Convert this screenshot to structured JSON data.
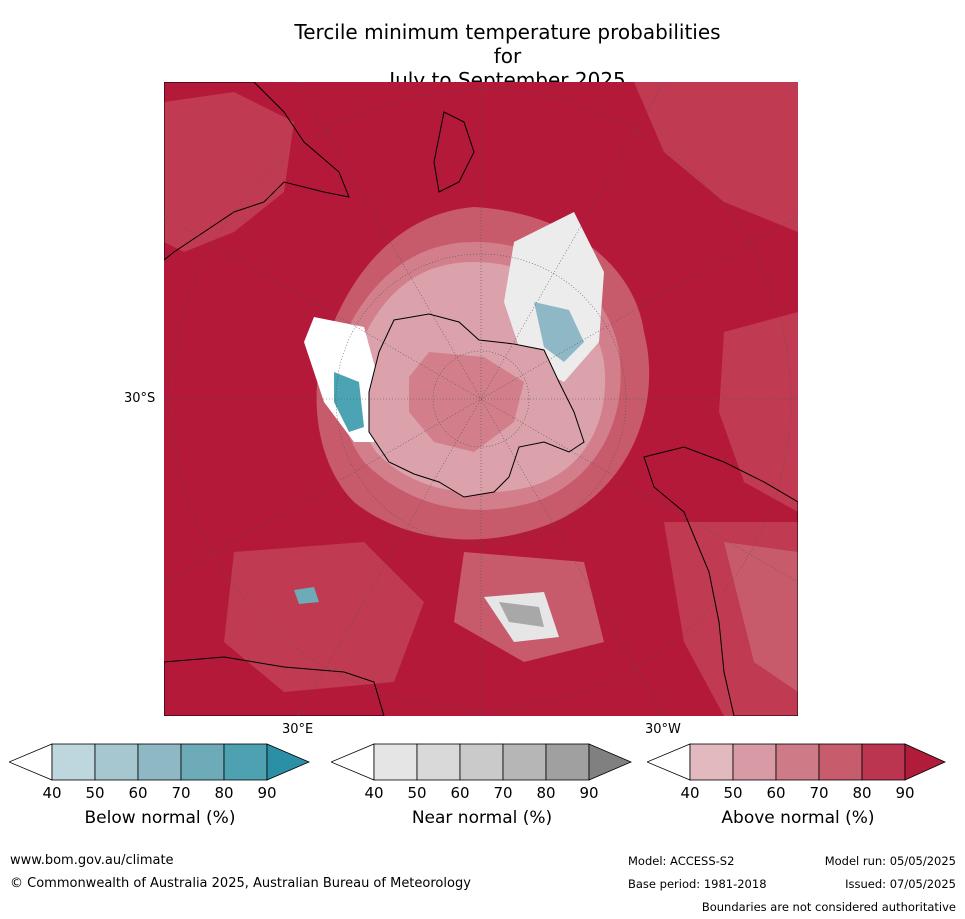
{
  "title_line1": "Tercile minimum temperature probabilities for",
  "title_line2": "July to September 2025",
  "map": {
    "lat_label": "30°S",
    "lon_label_east": "30°E",
    "lon_label_west": "30°W",
    "colors": {
      "above_90": "#b5193a",
      "above_80": "#c03a52",
      "above_70": "#c85b6b",
      "above_60": "#d27f8b",
      "above_50": "#dba2ab",
      "above_40": "#e6c3c8",
      "near_40": "#e6e6e6",
      "below_60": "#8fb8c6",
      "below_80": "#4ba3b3",
      "land_outline": "#000000"
    }
  },
  "colorbars": [
    {
      "label": "Below normal (%)",
      "ticks": [
        "40",
        "50",
        "60",
        "70",
        "80",
        "90"
      ],
      "colors": [
        "#ffffff",
        "#bed6dd",
        "#a6c7cf",
        "#8db8c4",
        "#6eabb8",
        "#4ea1b1",
        "#2b8fa6"
      ]
    },
    {
      "label": "Near normal (%)",
      "ticks": [
        "40",
        "50",
        "60",
        "70",
        "80",
        "90"
      ],
      "colors": [
        "#ffffff",
        "#e5e5e5",
        "#d9d9d9",
        "#cacaca",
        "#b6b6b6",
        "#a0a0a0",
        "#808080"
      ]
    },
    {
      "label": "Above normal (%)",
      "ticks": [
        "40",
        "50",
        "60",
        "70",
        "80",
        "90"
      ],
      "colors": [
        "#ffffff",
        "#e2b9bf",
        "#d89aa4",
        "#ce7a87",
        "#c65c6c",
        "#bc3550",
        "#b01c3a"
      ]
    }
  ],
  "footer": {
    "website": "www.bom.gov.au/climate",
    "copyright": "© Commonwealth of Australia 2025, Australian Bureau of Meteorology",
    "model": "Model: ACCESS-S2",
    "model_run": "Model run: 05/05/2025",
    "base_period": "Base period: 1981-2018",
    "issued": "Issued: 07/05/2025",
    "disclaimer": "Boundaries are not considered authoritative"
  }
}
